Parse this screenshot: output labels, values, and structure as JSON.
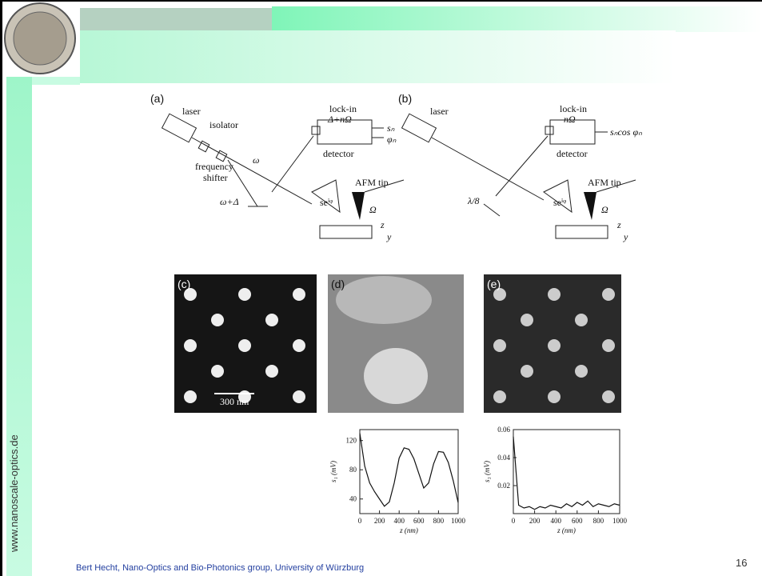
{
  "slide": {
    "side_text": "www.nanoscale-optics.de",
    "footer": "Bert Hecht, Nano-Optics and Bio-Photonics group, University of Würzburg",
    "page_number": "16"
  },
  "diagram_a": {
    "label": "(a)",
    "laser": "laser",
    "isolator": "isolator",
    "lockin": "lock-in",
    "lockin_freq": "Δ+nΩ",
    "out1": "sₙ",
    "out2": "φₙ",
    "detector": "detector",
    "shifter1": "frequency",
    "shifter2": "shifter",
    "omega": "ω",
    "omega_delta": "ω+Δ",
    "afm": "AFM tip",
    "signal": "seⁱᵠ",
    "mod": "Ω",
    "axis_z": "z",
    "axis_y": "y"
  },
  "diagram_b": {
    "label": "(b)",
    "laser": "laser",
    "lockin": "lock-in",
    "lockin_freq": "nΩ",
    "out": "sₙcos φₙ",
    "detector": "detector",
    "afm": "AFM tip",
    "lambda": "λ/8",
    "signal": "seⁱᵠ",
    "mod": "Ω",
    "axis_z": "z",
    "axis_y": "y"
  },
  "images": {
    "c": {
      "label": "(c)",
      "scale": "300 nm"
    },
    "d": {
      "label": "(d)"
    },
    "e": {
      "label": "(e)"
    }
  },
  "plots": [
    {
      "ylabel": "s₁ (mV)",
      "xlabel": "z (nm)",
      "xlim": [
        0,
        1000
      ],
      "ylim": [
        20,
        135
      ],
      "xticks": [
        0,
        200,
        400,
        600,
        800,
        1000
      ],
      "yticks": [
        40,
        80,
        120
      ],
      "x": [
        0,
        50,
        100,
        150,
        200,
        250,
        300,
        350,
        400,
        450,
        500,
        550,
        600,
        650,
        700,
        750,
        800,
        850,
        900,
        950,
        1000
      ],
      "values": [
        130,
        85,
        62,
        50,
        40,
        30,
        36,
        62,
        96,
        110,
        108,
        95,
        75,
        55,
        62,
        88,
        105,
        104,
        90,
        65,
        35
      ]
    },
    {
      "ylabel": "s₃ (mV)",
      "xlabel": "z (nm)",
      "xlim": [
        0,
        1000
      ],
      "ylim": [
        0,
        0.06
      ],
      "xticks": [
        0,
        200,
        400,
        600,
        800,
        1000
      ],
      "yticks": [
        0.02,
        0.04,
        0.06
      ],
      "x": [
        0,
        50,
        100,
        150,
        200,
        250,
        300,
        350,
        400,
        450,
        500,
        550,
        600,
        650,
        700,
        750,
        800,
        850,
        900,
        950,
        1000
      ],
      "values": [
        0.055,
        0.006,
        0.004,
        0.005,
        0.003,
        0.005,
        0.004,
        0.006,
        0.005,
        0.004,
        0.007,
        0.005,
        0.008,
        0.006,
        0.009,
        0.005,
        0.007,
        0.006,
        0.005,
        0.007,
        0.006
      ]
    }
  ]
}
